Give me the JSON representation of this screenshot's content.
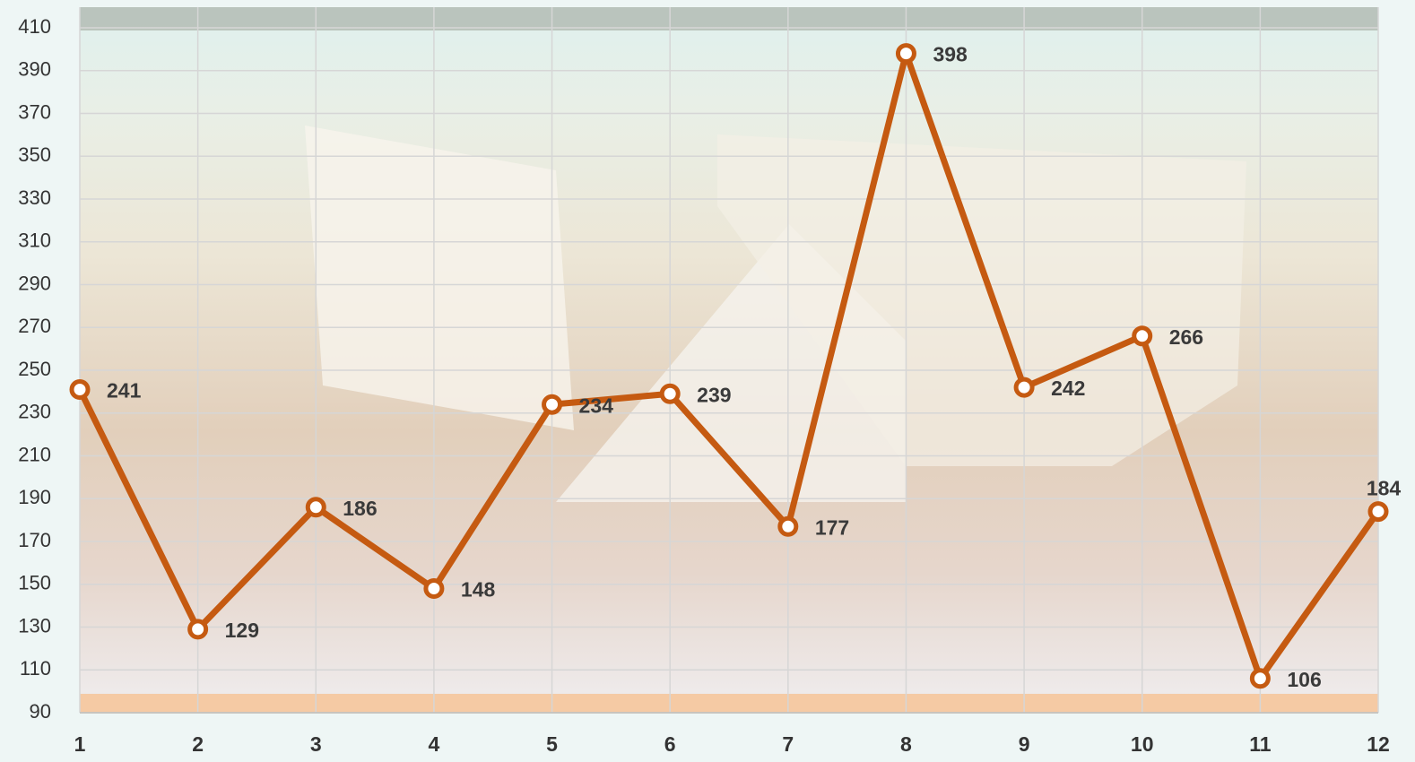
{
  "chart_data": {
    "type": "line",
    "x": [
      1,
      2,
      3,
      4,
      5,
      6,
      7,
      8,
      9,
      10,
      11,
      12
    ],
    "values": [
      241,
      129,
      186,
      148,
      234,
      239,
      177,
      398,
      242,
      266,
      106,
      184
    ],
    "color": "#c55a11",
    "xlim": [
      1,
      12
    ],
    "xticks": [
      1,
      2,
      3,
      4,
      5,
      6,
      7,
      8,
      9,
      10,
      11,
      12
    ],
    "ylim": [
      90,
      410
    ],
    "yticks": [
      90,
      110,
      130,
      150,
      170,
      190,
      210,
      230,
      250,
      270,
      290,
      310,
      330,
      350,
      370,
      390,
      410
    ],
    "grid": true
  }
}
